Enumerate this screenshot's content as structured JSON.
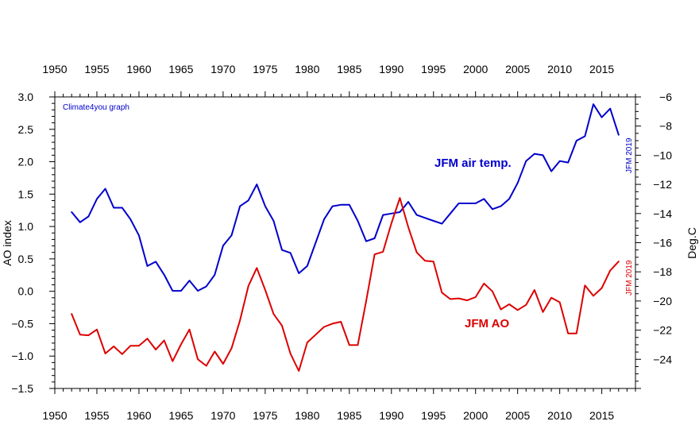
{
  "chart_data": {
    "type": "line",
    "credit": "Climate4you graph",
    "ylabel_left": "AO index",
    "ylabel_right": "Deg.C",
    "xlim": [
      1950,
      2019
    ],
    "ylim_left": [
      -1.5,
      3.0
    ],
    "ylim_right": [
      -26,
      -6
    ],
    "x_ticks": [
      1950,
      1955,
      1960,
      1965,
      1970,
      1975,
      1980,
      1985,
      1990,
      1995,
      2000,
      2005,
      2010,
      2015
    ],
    "y_ticks_left": [
      3.0,
      2.5,
      2.0,
      1.5,
      1.0,
      0.5,
      0.0,
      -0.5,
      -1.0,
      -1.5
    ],
    "y_tick_labels_left": [
      "3.0",
      "2.5",
      "2.0",
      "1.5",
      "1.0",
      "0.5",
      "0.0",
      "−0.5",
      "−1.0",
      "−1.5"
    ],
    "y_ticks_right": [
      -6,
      -8,
      -10,
      -12,
      -14,
      -16,
      -18,
      -20,
      -22,
      -24
    ],
    "y_tick_labels_right": [
      "−6",
      "−8",
      "−10",
      "−12",
      "−14",
      "−16",
      "−18",
      "−20",
      "−22",
      "−24"
    ],
    "grid": false,
    "series": [
      {
        "name": "JFM air temp.",
        "axis": "right",
        "color": "#0000cc",
        "end_label": "JFM 2019",
        "x": [
          1952,
          1953,
          1954,
          1955,
          1956,
          1957,
          1958,
          1959,
          1960,
          1961,
          1962,
          1963,
          1964,
          1965,
          1966,
          1967,
          1968,
          1969,
          1970,
          1971,
          1972,
          1973,
          1974,
          1975,
          1976,
          1977,
          1978,
          1979,
          1980,
          1981,
          1982,
          1983,
          1984,
          1985,
          1986,
          1987,
          1988,
          1989,
          1990,
          1991,
          1992,
          1993,
          1994,
          1995,
          1996,
          1997,
          1998,
          1999,
          2000,
          2001,
          2002,
          2003,
          2004,
          2005,
          2006,
          2007,
          2008,
          2009,
          2010,
          2011,
          2012,
          2013,
          2014,
          2015,
          2016,
          2017
        ],
        "values": [
          -13.9,
          -14.6,
          -14.2,
          -13.0,
          -12.3,
          -13.6,
          -13.6,
          -14.4,
          -15.5,
          -17.6,
          -17.3,
          -18.2,
          -19.3,
          -19.3,
          -18.6,
          -19.3,
          -19.0,
          -18.2,
          -16.2,
          -15.5,
          -13.5,
          -13.1,
          -12.0,
          -13.5,
          -14.5,
          -16.5,
          -16.7,
          -18.1,
          -17.6,
          -16.0,
          -14.4,
          -13.5,
          -13.4,
          -13.4,
          -14.5,
          -15.9,
          -15.7,
          -14.1,
          -14.0,
          -13.9,
          -13.2,
          -14.1,
          -14.3,
          -14.5,
          -14.7,
          -14.0,
          -13.3,
          -13.3,
          -13.3,
          -13.0,
          -13.7,
          -13.5,
          -13.0,
          -11.9,
          -10.4,
          -9.9,
          -10.0,
          -11.1,
          -10.4,
          -10.5,
          -9.0,
          -8.7,
          -6.5,
          -7.4,
          -6.8,
          -8.6
        ]
      },
      {
        "name": "JFM AO",
        "axis": "left",
        "color": "#dd0000",
        "end_label": "JFM 2019",
        "x": [
          1952,
          1953,
          1954,
          1955,
          1956,
          1957,
          1958,
          1959,
          1960,
          1961,
          1962,
          1963,
          1964,
          1965,
          1966,
          1967,
          1968,
          1969,
          1970,
          1971,
          1972,
          1973,
          1974,
          1975,
          1976,
          1977,
          1978,
          1979,
          1980,
          1981,
          1982,
          1983,
          1984,
          1985,
          1986,
          1987,
          1988,
          1989,
          1990,
          1991,
          1992,
          1993,
          1994,
          1995,
          1996,
          1997,
          1998,
          1999,
          2000,
          2001,
          2002,
          2003,
          2004,
          2005,
          2006,
          2007,
          2008,
          2009,
          2010,
          2011,
          2012,
          2013,
          2014,
          2015,
          2016,
          2017
        ],
        "values": [
          -0.35,
          -0.67,
          -0.68,
          -0.59,
          -0.96,
          -0.85,
          -0.97,
          -0.84,
          -0.84,
          -0.73,
          -0.9,
          -0.76,
          -1.08,
          -0.82,
          -0.59,
          -1.05,
          -1.15,
          -0.93,
          -1.12,
          -0.88,
          -0.45,
          0.08,
          0.36,
          0.02,
          -0.35,
          -0.53,
          -0.96,
          -1.23,
          -0.79,
          -0.67,
          -0.55,
          -0.5,
          -0.47,
          -0.83,
          -0.83,
          -0.15,
          0.57,
          0.61,
          1.05,
          1.44,
          0.99,
          0.6,
          0.47,
          0.46,
          -0.02,
          -0.12,
          -0.11,
          -0.14,
          -0.09,
          0.12,
          0.0,
          -0.28,
          -0.2,
          -0.29,
          -0.21,
          0.02,
          -0.32,
          -0.1,
          -0.17,
          -0.65,
          -0.65,
          0.09,
          -0.07,
          0.05,
          0.32,
          0.46
        ]
      }
    ]
  }
}
